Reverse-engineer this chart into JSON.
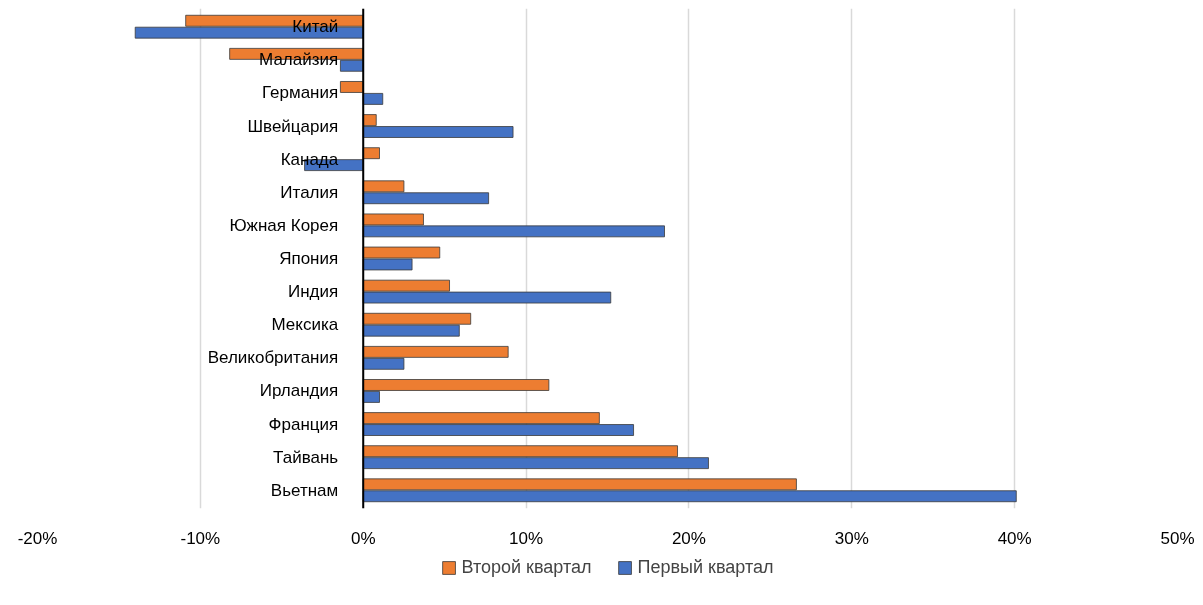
{
  "chart_data": {
    "type": "bar",
    "orientation": "horizontal",
    "categories": [
      "Китай",
      "Малайзия",
      "Германия",
      "Швейцария",
      "Канада",
      "Италия",
      "Южная Корея",
      "Япония",
      "Индия",
      "Мексика",
      "Великобритания",
      "Ирландия",
      "Франция",
      "Тайвань",
      "Вьетнам"
    ],
    "series": [
      {
        "name": "Второй квартал",
        "color": "#ed7d31",
        "values": [
          -10.9,
          -8.2,
          -1.4,
          0.8,
          1.0,
          2.5,
          3.7,
          4.7,
          5.3,
          6.6,
          8.9,
          11.4,
          14.5,
          19.3,
          26.6
        ]
      },
      {
        "name": "Первый квартал",
        "color": "#4472c4",
        "values": [
          -14.0,
          -1.4,
          1.2,
          9.2,
          -3.6,
          7.7,
          18.5,
          3.0,
          15.2,
          5.9,
          2.5,
          1.0,
          16.6,
          21.2,
          40.1
        ]
      }
    ],
    "xlim": [
      -20,
      50
    ],
    "xticks": [
      {
        "value": -20,
        "label": "-20%"
      },
      {
        "value": -10,
        "label": "-10%"
      },
      {
        "value": 0,
        "label": "0%"
      },
      {
        "value": 10,
        "label": "10%"
      },
      {
        "value": 20,
        "label": "20%"
      },
      {
        "value": 30,
        "label": "30%"
      },
      {
        "value": 40,
        "label": "40%"
      },
      {
        "value": 50,
        "label": "50%"
      }
    ],
    "grid": "x",
    "legend": "bottom"
  }
}
